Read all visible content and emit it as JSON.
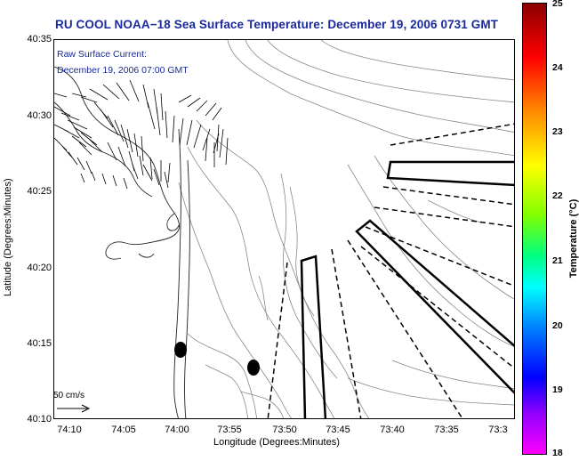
{
  "title": "RU COOL  NOAA−18  Sea Surface Temperature:  December 19, 2006 0731 GMT",
  "current_label": {
    "line1": "Raw Surface Current:",
    "line2": "December 19, 2006 07:00 GMT"
  },
  "axes": {
    "x_title": "Longitude (Degrees:Minutes)",
    "y_title": "Latitude (Degrees:Minutes)",
    "x_ticks": [
      "74:10",
      "74:05",
      "74:00",
      "73:55",
      "73:50",
      "73:45",
      "73:40",
      "73:35",
      "73:3"
    ],
    "y_ticks": [
      "40:35",
      "40:30",
      "40:25",
      "40:20",
      "40:15",
      "40:10"
    ]
  },
  "scale": {
    "label": "50 cm/s"
  },
  "colorbar": {
    "title": "Temperature (°C)",
    "ticks": [
      "25",
      "24",
      "23",
      "22",
      "21",
      "20",
      "19",
      "18"
    ],
    "range": [
      18,
      25
    ]
  }
}
